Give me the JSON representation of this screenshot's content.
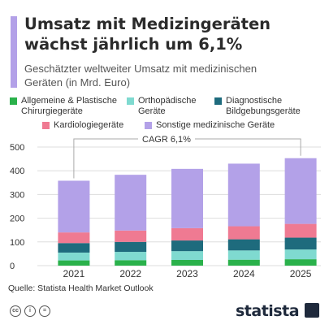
{
  "colors": {
    "accent": "#b3a1e8",
    "title": "#2b2b2b",
    "grid": "#dddddd",
    "axis_text": "#333333",
    "brand": "#1f2a3c"
  },
  "header": {
    "title_line1": "Umsatz mit Medizingeräten",
    "title_line2": "wächst jährlich um 6,1%",
    "subtitle_line1": "Geschätzter weltweiter Umsatz mit medizinischen",
    "subtitle_line2": "Geräten (in Mrd. Euro)"
  },
  "legend": [
    {
      "lines": [
        "Allgemeine & Plastische",
        "Chirurgiegeräte"
      ],
      "color": "#2ab14b"
    },
    {
      "lines": [
        "Orthopädische",
        "Geräte"
      ],
      "color": "#7fdad0"
    },
    {
      "lines": [
        "Diagnostische",
        "Bildgebungsgeräte"
      ],
      "color": "#1e6b7d"
    },
    {
      "lines": [
        "Kardiologiegeräte"
      ],
      "color": "#ef7a92"
    },
    {
      "lines": [
        "Sonstige medizinische Geräte"
      ],
      "color": "#b3a1e8"
    }
  ],
  "chart_data": {
    "type": "bar",
    "stacked": true,
    "categories": [
      "2021",
      "2022",
      "2023",
      "2024",
      "2025"
    ],
    "series": [
      {
        "name": "Allgemeine & Plastische Chirurgiegeräte",
        "color": "#2ab14b",
        "values": [
          22,
          23,
          24,
          25,
          27
        ]
      },
      {
        "name": "Orthopädische Geräte",
        "color": "#7fdad0",
        "values": [
          33,
          35,
          37,
          39,
          41
        ]
      },
      {
        "name": "Diagnostische Bildgebungsgeräte",
        "color": "#1e6b7d",
        "values": [
          40,
          42,
          45,
          47,
          50
        ]
      },
      {
        "name": "Kardiologiegeräte",
        "color": "#ef7a92",
        "values": [
          45,
          48,
          52,
          55,
          58
        ]
      },
      {
        "name": "Sonstige medizinische Geräte",
        "color": "#b3a1e8",
        "values": [
          218,
          235,
          250,
          264,
          277
        ]
      }
    ],
    "yticks": [
      0,
      100,
      200,
      300,
      400,
      500
    ],
    "ylim": [
      0,
      500
    ],
    "annotation": "CAGR 6,1%",
    "grid": true
  },
  "footer": {
    "source": "Quelle: Statista Health Market Outlook",
    "brand": "statista",
    "license_icons": [
      "cc-icon",
      "by-icon",
      "nd-icon"
    ]
  }
}
